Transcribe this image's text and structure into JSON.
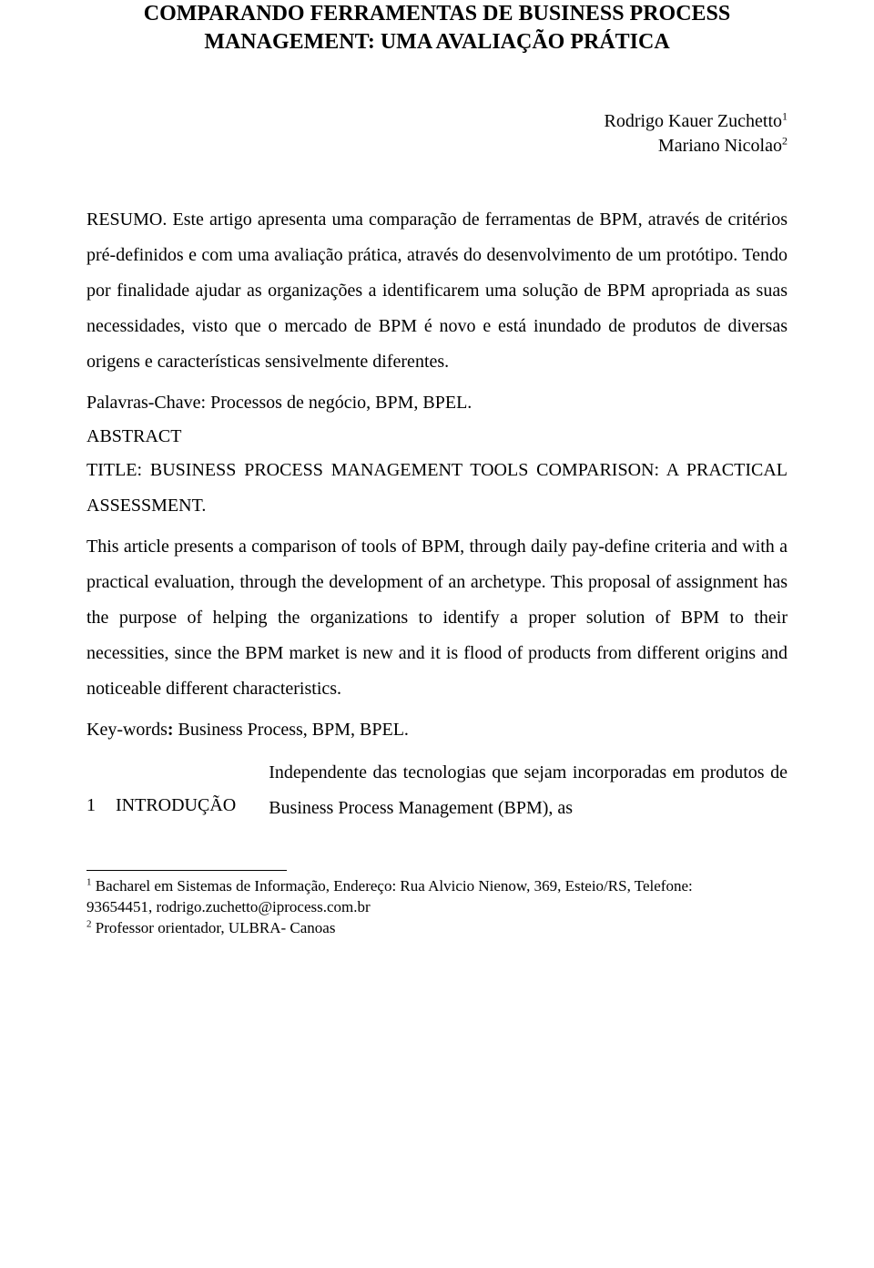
{
  "title": {
    "line1": "COMPARANDO FERRAMENTAS DE BUSINESS PROCESS",
    "line2": "MANAGEMENT: UMA AVALIAÇÃO PRÁTICA"
  },
  "authors": {
    "a1_name": "Rodrigo Kauer Zuchetto",
    "a1_sup": "1",
    "a2_name": "Mariano Nicolao",
    "a2_sup": "2"
  },
  "resumo_label": "RESUMO.",
  "resumo_text": " Este artigo apresenta uma comparação de ferramentas de BPM, através de critérios pré-definidos e com uma avaliação prática, através do desenvolvimento de um protótipo. Tendo por finalidade ajudar as organizações a identificarem uma solução de BPM apropriada as suas necessidades, visto que o mercado de BPM é novo e está inundado de produtos de diversas origens e características sensivelmente diferentes.",
  "palavras_chave_label": "Palavras-Chave:",
  "palavras_chave_text": " Processos de negócio, BPM, BPEL.",
  "abstract_label": "ABSTRACT",
  "abstract_title": "TITLE: BUSINESS PROCESS MANAGEMENT TOOLS COMPARISON: A PRACTICAL ASSESSMENT.",
  "abstract_text": "This article presents a comparison of tools of BPM, through daily pay-define criteria and with a practical evaluation, through the development of an archetype. This proposal of assignment has the purpose of helping the organizations to identify a proper solution of BPM to their necessities, since the BPM market is new and it is flood of products from different origins and noticeable different characteristics.",
  "keywords_en_label": "Key-words",
  "keywords_en_colon": ":",
  "keywords_en_text": " Business Process, BPM, BPEL.",
  "intro": {
    "num": "1",
    "heading": "INTRODUÇÃO",
    "body": "Independente das tecnologias que sejam incorporadas em produtos de Business Process Management (BPM), as"
  },
  "footnotes": {
    "f1_sup": "1",
    "f1_line1": " Bacharel em Sistemas de Informação, Endereço: Rua Alvicio Nienow, 369, Esteio/RS, Telefone:",
    "f1_line2": "93654451, rodrigo.zuchetto@iprocess.com.br",
    "f2_sup": "2",
    "f2_text": " Professor orientador, ULBRA- Canoas"
  }
}
